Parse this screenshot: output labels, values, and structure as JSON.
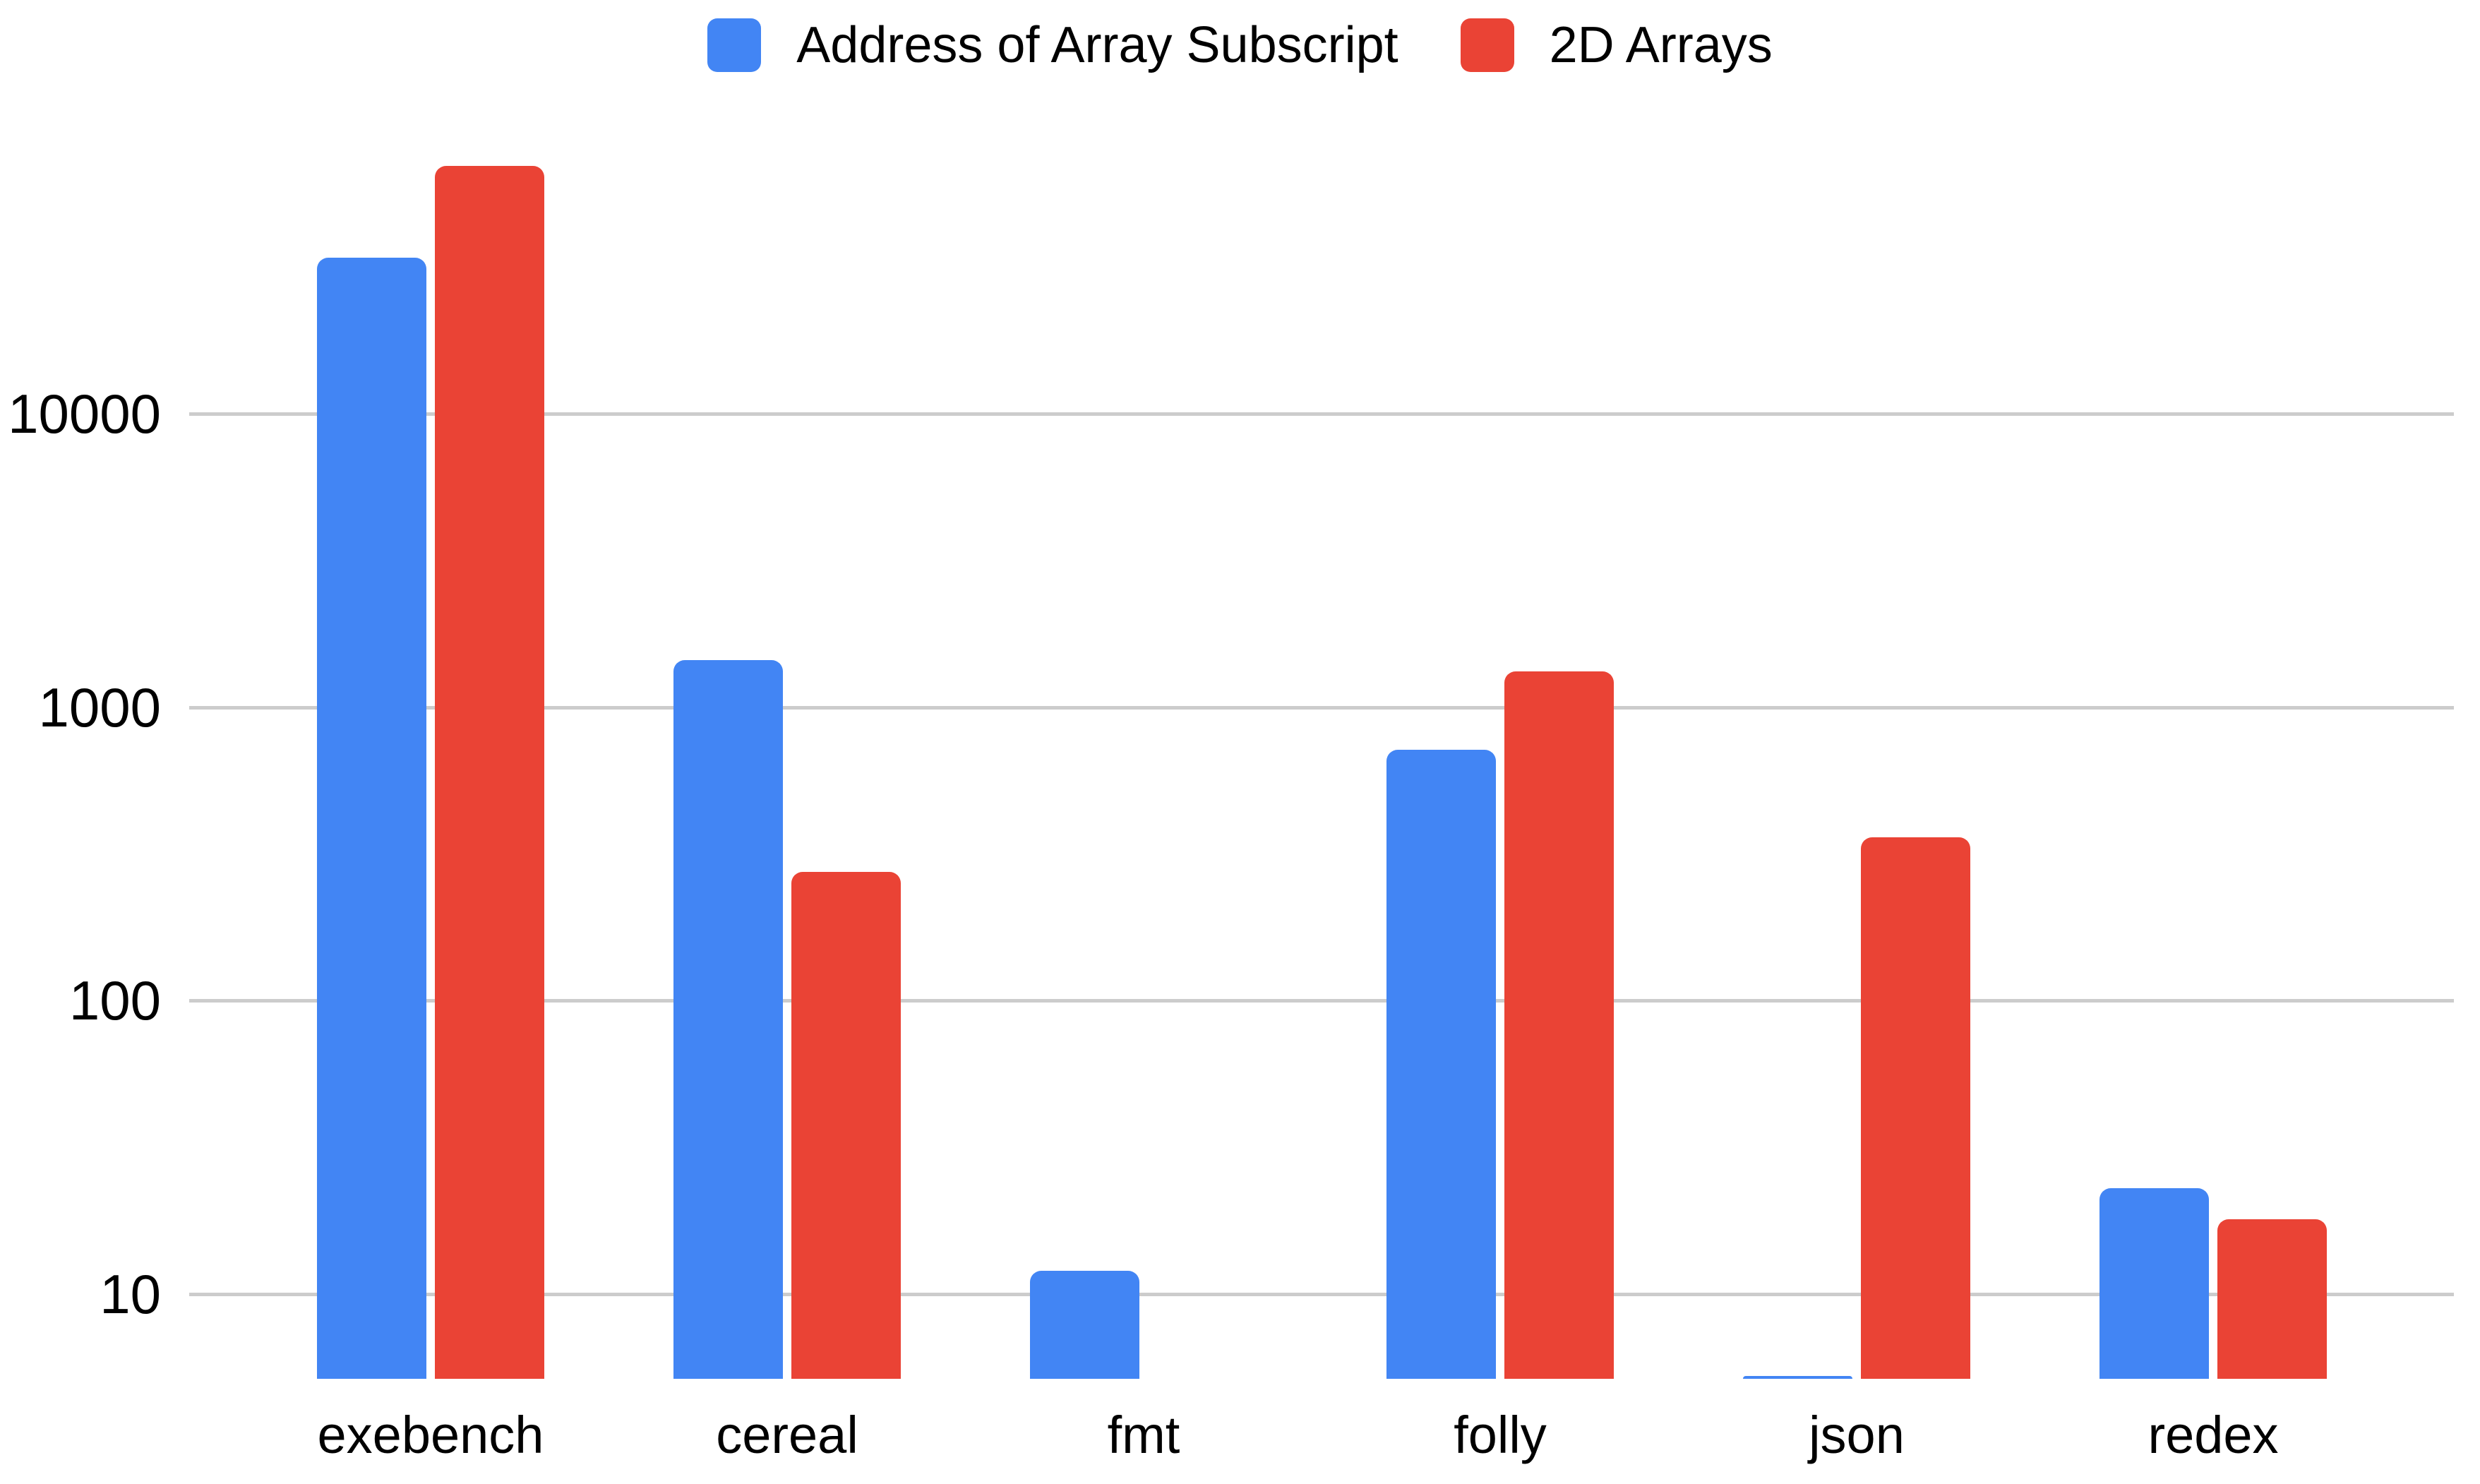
{
  "chart_data": {
    "type": "bar",
    "title": "",
    "orientation": "vertical",
    "grouped": true,
    "categories": [
      "exebench",
      "cereal",
      "fmt",
      "folly",
      "json",
      "redex"
    ],
    "series": [
      {
        "name": "Address of Array Subscript",
        "color": "#4285F4",
        "values": [
          34000,
          1450,
          12,
          715,
          5,
          23
        ]
      },
      {
        "name": "2D Arrays",
        "color": "#EA4335",
        "values": [
          70000,
          275,
          null,
          1320,
          360,
          18
        ]
      }
    ],
    "y_axis": {
      "scale": "log",
      "ticks": [
        10,
        100,
        1000,
        10000
      ],
      "tick_labels": [
        "10",
        "100",
        "1000",
        "10000"
      ],
      "min": 5,
      "grid": true,
      "gridline_color": "#CCCCCC"
    },
    "x_axis": {
      "tick_labels": [
        "exebench",
        "cereal",
        "fmt",
        "folly",
        "json",
        "redex"
      ]
    },
    "legend": {
      "position": "top",
      "items": [
        "Address of Array Subscript",
        "2D Arrays"
      ]
    },
    "background_color": "#FFFFFF",
    "text_color": "#000000"
  }
}
